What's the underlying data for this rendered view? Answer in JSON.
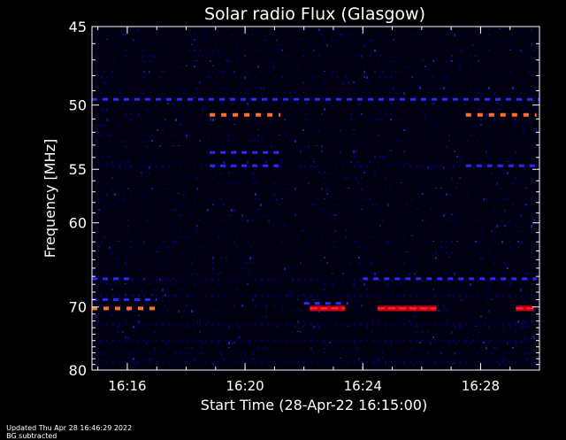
{
  "chart_data": {
    "type": "heatmap",
    "title": "Solar radio Flux (Glasgow)",
    "xlabel": "Start Time (28-Apr-22 16:15:00)",
    "ylabel": "Frequency [MHz]",
    "x_ticks": [
      {
        "label": "16:16",
        "minutes": 16
      },
      {
        "label": "16:20",
        "minutes": 20
      },
      {
        "label": "16:24",
        "minutes": 24
      },
      {
        "label": "16:28",
        "minutes": 28
      }
    ],
    "x_range_minutes": [
      14.8,
      30.0
    ],
    "y_ticks": [
      45,
      50,
      55,
      60,
      70,
      80
    ],
    "y_range": [
      45,
      80
    ],
    "y_scale": "reciprocal",
    "y_direction": "increasing-downward",
    "grid": false,
    "colormap": [
      "#000010",
      "#0000a0",
      "#2a2aff",
      "#cc0000",
      "#ff7030",
      "#ffb070"
    ],
    "bursts": [
      {
        "freq": 50.7,
        "start_min": 18.8,
        "end_min": 21.2,
        "level": "high"
      },
      {
        "freq": 50.7,
        "start_min": 27.5,
        "end_min": 29.9,
        "level": "high"
      },
      {
        "freq": 70.2,
        "start_min": 14.8,
        "end_min": 17.0,
        "level": "high"
      },
      {
        "freq": 70.2,
        "start_min": 22.2,
        "end_min": 23.4,
        "level": "medium"
      },
      {
        "freq": 70.2,
        "start_min": 24.5,
        "end_min": 26.5,
        "level": "medium"
      },
      {
        "freq": 70.2,
        "start_min": 29.2,
        "end_min": 29.8,
        "level": "medium"
      }
    ]
  },
  "footer": {
    "updated": "Updated Thu Apr 28 16:46:29 2022",
    "bg_note": "BG subtracted"
  }
}
